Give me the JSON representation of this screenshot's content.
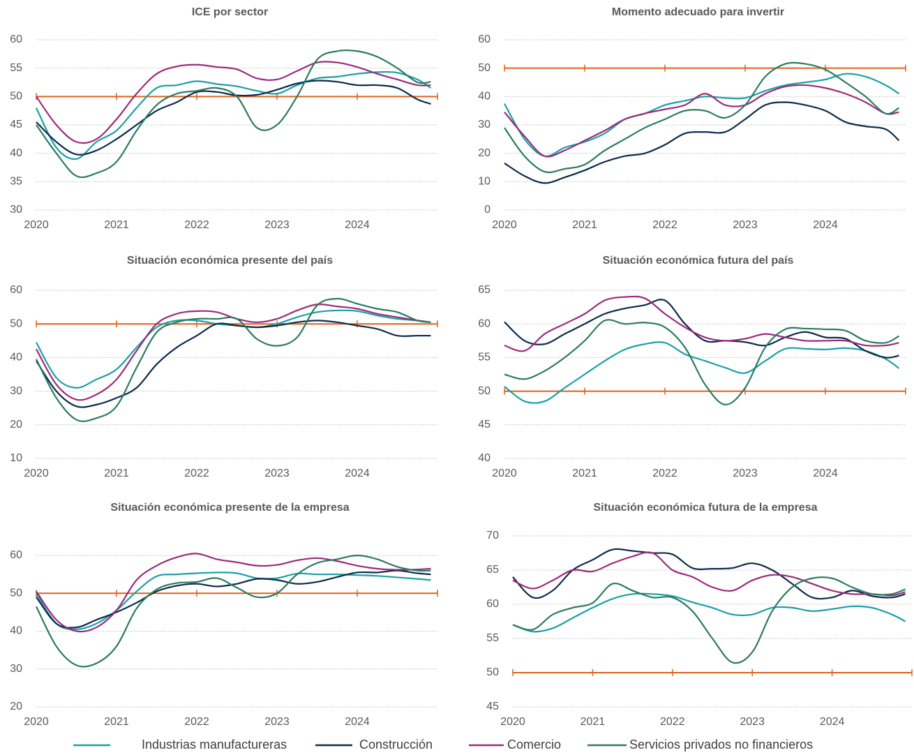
{
  "chart_data": [
    {
      "type": "line",
      "title": "ICE por sector",
      "x": [
        2020,
        2020.25,
        2020.5,
        2020.75,
        2021,
        2021.25,
        2021.5,
        2021.75,
        2022,
        2022.25,
        2022.5,
        2022.75,
        2023,
        2023.25,
        2023.5,
        2023.75,
        2024,
        2024.25,
        2024.5,
        2024.75,
        2024.917
      ],
      "xlim": [
        2020,
        2025
      ],
      "xticks": [
        2020,
        2021,
        2022,
        2023,
        2024
      ],
      "ylim": [
        30,
        60
      ],
      "yticks": [
        30,
        35,
        40,
        45,
        50,
        55,
        60
      ],
      "refline": 50,
      "refcolor": "#e0601a",
      "grid": true,
      "series": [
        {
          "name": "Industrias manufactureras",
          "color": "#1aa0a4",
          "values": [
            48,
            41,
            39,
            42,
            44,
            48,
            51.5,
            52,
            52.7,
            52.2,
            51.8,
            51,
            50.5,
            52,
            53.2,
            53.5,
            54,
            54.3,
            54.2,
            53,
            51.5
          ]
        },
        {
          "name": "Construcción",
          "color": "#0c2a4b",
          "values": [
            45.5,
            42,
            39.8,
            40.5,
            42.5,
            45,
            47.5,
            49,
            50.8,
            50.8,
            50.2,
            50.3,
            51.2,
            52.3,
            52.8,
            52.6,
            52,
            52,
            51.5,
            49.5,
            48.7
          ]
        },
        {
          "name": "Comercio",
          "color": "#9c2a7b",
          "values": [
            50,
            45,
            42,
            42.5,
            46,
            50.5,
            54,
            55.3,
            55.6,
            55.2,
            54.8,
            53.2,
            53,
            54.5,
            56,
            56,
            55.2,
            54,
            53,
            52,
            52
          ]
        },
        {
          "name": "Servicios privados no financieros",
          "color": "#2a7b5f",
          "values": [
            45,
            40,
            36,
            36.5,
            38.5,
            44,
            48.5,
            50.5,
            51,
            51.5,
            50,
            44.5,
            45,
            50,
            56.5,
            58,
            58,
            57,
            55,
            52.5,
            52.6
          ]
        }
      ]
    },
    {
      "type": "line",
      "title": "Momento adecuado para invertir",
      "x": [
        2020,
        2020.25,
        2020.5,
        2020.75,
        2021,
        2021.25,
        2021.5,
        2021.75,
        2022,
        2022.25,
        2022.5,
        2022.75,
        2023,
        2023.25,
        2023.5,
        2023.75,
        2024,
        2024.25,
        2024.5,
        2024.75,
        2024.917
      ],
      "xlim": [
        2020,
        2025
      ],
      "xticks": [
        2020,
        2021,
        2022,
        2023,
        2024
      ],
      "ylim": [
        0,
        60
      ],
      "yticks": [
        0,
        10,
        20,
        30,
        40,
        50,
        60
      ],
      "refline": 50,
      "refcolor": "#e0601a",
      "grid": true,
      "series": [
        {
          "color": "#1aa0a4",
          "values": [
            37.5,
            25,
            19,
            22,
            24,
            27,
            32,
            34,
            37,
            38.5,
            40,
            39.5,
            39.5,
            42,
            44,
            45,
            46,
            48,
            47,
            44,
            41
          ]
        },
        {
          "color": "#0c2a4b",
          "values": [
            16.5,
            12,
            9.5,
            11.5,
            14,
            17,
            19,
            20,
            23,
            27,
            27.5,
            27.5,
            32,
            37,
            38,
            37,
            35,
            31,
            29.5,
            28.5,
            24.5
          ]
        },
        {
          "color": "#9c2a7b",
          "values": [
            34.5,
            26,
            19,
            21,
            24.5,
            28,
            32,
            34,
            35.5,
            37,
            41,
            37,
            37,
            41,
            43.5,
            44,
            43,
            41,
            38,
            34,
            34.5
          ]
        },
        {
          "color": "#2a7b5f",
          "values": [
            29,
            19,
            13.5,
            14.5,
            16,
            21,
            25,
            29,
            32,
            35,
            35,
            32.5,
            37,
            47,
            51.5,
            51.5,
            49.5,
            45,
            40,
            34,
            36
          ]
        }
      ]
    },
    {
      "type": "line",
      "title": "Situación económica presente del país",
      "x": [
        2020,
        2020.25,
        2020.5,
        2020.75,
        2021,
        2021.25,
        2021.5,
        2021.75,
        2022,
        2022.25,
        2022.5,
        2022.75,
        2023,
        2023.25,
        2023.5,
        2023.75,
        2024,
        2024.25,
        2024.5,
        2024.75,
        2024.917
      ],
      "xlim": [
        2020,
        2025
      ],
      "xticks": [
        2020,
        2021,
        2022,
        2023,
        2024
      ],
      "ylim": [
        10,
        60
      ],
      "yticks": [
        10,
        20,
        30,
        40,
        50,
        60
      ],
      "refline": 50,
      "refcolor": "#e0601a",
      "grid": true,
      "series": [
        {
          "color": "#1aa0a4",
          "values": [
            44.5,
            34,
            31,
            33.5,
            36.5,
            43,
            49,
            51,
            51,
            50,
            49.5,
            49,
            50,
            52,
            53.5,
            54,
            53.8,
            52.5,
            51.5,
            51,
            50.5
          ]
        },
        {
          "color": "#0c2a4b",
          "values": [
            39,
            30,
            25.5,
            26,
            28,
            31,
            38,
            43,
            46.5,
            50,
            49.5,
            49,
            49.5,
            50.5,
            51,
            50.5,
            49.5,
            48.5,
            46.5,
            46.5,
            46.5
          ]
        },
        {
          "color": "#9c2a7b",
          "values": [
            42.5,
            32,
            27.5,
            29,
            33.5,
            42,
            50,
            53,
            53.8,
            53.5,
            51.5,
            50.5,
            51.5,
            54,
            55.8,
            55.2,
            54.5,
            53,
            52,
            51,
            50.5
          ]
        },
        {
          "color": "#2a7b5f",
          "values": [
            39.5,
            28,
            21.5,
            22,
            25.5,
            37,
            47.5,
            50.5,
            51.5,
            51.5,
            51.5,
            45.5,
            43.5,
            46,
            55.5,
            57.5,
            56,
            54.5,
            53.5,
            51,
            50.5
          ]
        }
      ]
    },
    {
      "type": "line",
      "title": "Situación económica futura del país",
      "x": [
        2020,
        2020.25,
        2020.5,
        2020.75,
        2021,
        2021.25,
        2021.5,
        2021.75,
        2022,
        2022.25,
        2022.5,
        2022.75,
        2023,
        2023.25,
        2023.5,
        2023.75,
        2024,
        2024.25,
        2024.5,
        2024.75,
        2024.917
      ],
      "xlim": [
        2020,
        2025
      ],
      "xticks": [
        2020,
        2021,
        2022,
        2023,
        2024
      ],
      "ylim": [
        40,
        65
      ],
      "yticks": [
        40,
        45,
        50,
        55,
        60,
        65
      ],
      "refline": 50,
      "refcolor": "#e0601a",
      "grid": true,
      "series": [
        {
          "color": "#1aa0a4",
          "values": [
            50.7,
            48.5,
            48.5,
            50.5,
            52.5,
            54.5,
            56.2,
            57,
            57.2,
            55.5,
            54.5,
            53.5,
            52.7,
            54.5,
            56.3,
            56.3,
            56.2,
            56.4,
            56,
            54.8,
            53.4
          ]
        },
        {
          "color": "#0c2a4b",
          "values": [
            60.3,
            57.5,
            57,
            58.5,
            60,
            61.5,
            62.3,
            62.8,
            63.5,
            60,
            57.5,
            57.5,
            57.3,
            56.8,
            58,
            58.8,
            58,
            57.8,
            56,
            55,
            55.3
          ]
        },
        {
          "color": "#9c2a7b",
          "values": [
            56.8,
            56,
            58.5,
            60,
            61.5,
            63.5,
            64,
            63.8,
            61.5,
            59.5,
            58,
            57.5,
            57.8,
            58.5,
            58,
            57.5,
            57.5,
            57.5,
            56.8,
            56.8,
            57.2
          ]
        },
        {
          "color": "#2a7b5f",
          "values": [
            52.5,
            51.8,
            53,
            55,
            57.5,
            60.5,
            60,
            60.2,
            59.5,
            56.5,
            51,
            48,
            50.5,
            56.5,
            59.2,
            59.3,
            59.2,
            59,
            57.5,
            57.2,
            58.2
          ]
        }
      ]
    },
    {
      "type": "line",
      "title": "Situación económica presente de la empresa",
      "x": [
        2020,
        2020.25,
        2020.5,
        2020.75,
        2021,
        2021.25,
        2021.5,
        2021.75,
        2022,
        2022.25,
        2022.5,
        2022.75,
        2023,
        2023.25,
        2023.5,
        2023.75,
        2024,
        2024.25,
        2024.5,
        2024.75,
        2024.917
      ],
      "xlim": [
        2020,
        2025
      ],
      "xticks": [
        2020,
        2021,
        2022,
        2023,
        2024
      ],
      "ylim": [
        20,
        60
      ],
      "yticks": [
        20,
        30,
        40,
        50,
        60
      ],
      "refline": 50,
      "refcolor": "#e0601a",
      "grid": true,
      "series": [
        {
          "color": "#1aa0a4",
          "values": [
            50,
            42,
            40.5,
            42,
            45.5,
            50.5,
            54.5,
            55,
            55.3,
            55.5,
            55.3,
            54,
            54,
            55.2,
            55,
            55,
            54.8,
            54.6,
            54.2,
            53.8,
            53.5
          ]
        },
        {
          "color": "#0c2a4b",
          "values": [
            49,
            42,
            41,
            43,
            45,
            47.5,
            50.5,
            52,
            52.5,
            51.8,
            52.5,
            53.8,
            53.5,
            52.5,
            53,
            54.3,
            55.5,
            55.5,
            56,
            55.3,
            55
          ]
        },
        {
          "color": "#9c2a7b",
          "values": [
            50.5,
            43,
            40,
            41,
            45.5,
            53.5,
            57.3,
            59.5,
            60.5,
            59,
            58.2,
            57.3,
            57.5,
            58.7,
            59.3,
            58.5,
            57.3,
            56.5,
            56.2,
            56.3,
            56.5
          ]
        },
        {
          "color": "#2a7b5f",
          "values": [
            46.5,
            36,
            31,
            31.5,
            36,
            46,
            51,
            52.7,
            53,
            54,
            51.5,
            49,
            50,
            55,
            58,
            59,
            60,
            59,
            57,
            56,
            56
          ]
        }
      ]
    },
    {
      "type": "line",
      "title": "Situación económica futura de la empresa",
      "x": [
        2020,
        2020.25,
        2020.5,
        2020.75,
        2021,
        2021.25,
        2021.5,
        2021.75,
        2022,
        2022.25,
        2022.5,
        2022.75,
        2023,
        2023.25,
        2023.5,
        2023.75,
        2024,
        2024.25,
        2024.5,
        2024.75,
        2024.917
      ],
      "xlim": [
        2020,
        2025
      ],
      "xticks": [
        2020,
        2021,
        2022,
        2023,
        2024
      ],
      "ylim": [
        45,
        70
      ],
      "yticks": [
        45,
        50,
        55,
        60,
        65,
        70
      ],
      "refline": 50,
      "refcolor": "#e0601a",
      "grid": true,
      "series": [
        {
          "color": "#1aa0a4",
          "values": [
            57,
            56,
            56.5,
            58,
            59.5,
            60.8,
            61.5,
            61.5,
            61.2,
            60.3,
            59.5,
            58.5,
            58.5,
            59.5,
            59.5,
            59,
            59.3,
            59.7,
            59.5,
            58.5,
            57.5
          ]
        },
        {
          "color": "#0c2a4b",
          "values": [
            64,
            61,
            62,
            65,
            66.5,
            68,
            67.8,
            67.5,
            67.3,
            65.3,
            65.2,
            65.3,
            66,
            65,
            63,
            61,
            61,
            62,
            61.2,
            61,
            61.5
          ]
        },
        {
          "color": "#9c2a7b",
          "values": [
            63.5,
            62.3,
            63.5,
            65,
            64.8,
            66,
            67,
            67.5,
            65,
            64,
            62.5,
            62,
            63.5,
            64.3,
            64,
            63,
            62,
            61.5,
            61.5,
            61.3,
            61.8
          ]
        },
        {
          "color": "#2a7b5f",
          "values": [
            57,
            56.3,
            58.5,
            59.5,
            60.2,
            63,
            62,
            61,
            61,
            59,
            55,
            51.5,
            53,
            59,
            62.5,
            63.8,
            63.8,
            62.5,
            61.5,
            61.5,
            62.2
          ]
        }
      ]
    }
  ]
}
